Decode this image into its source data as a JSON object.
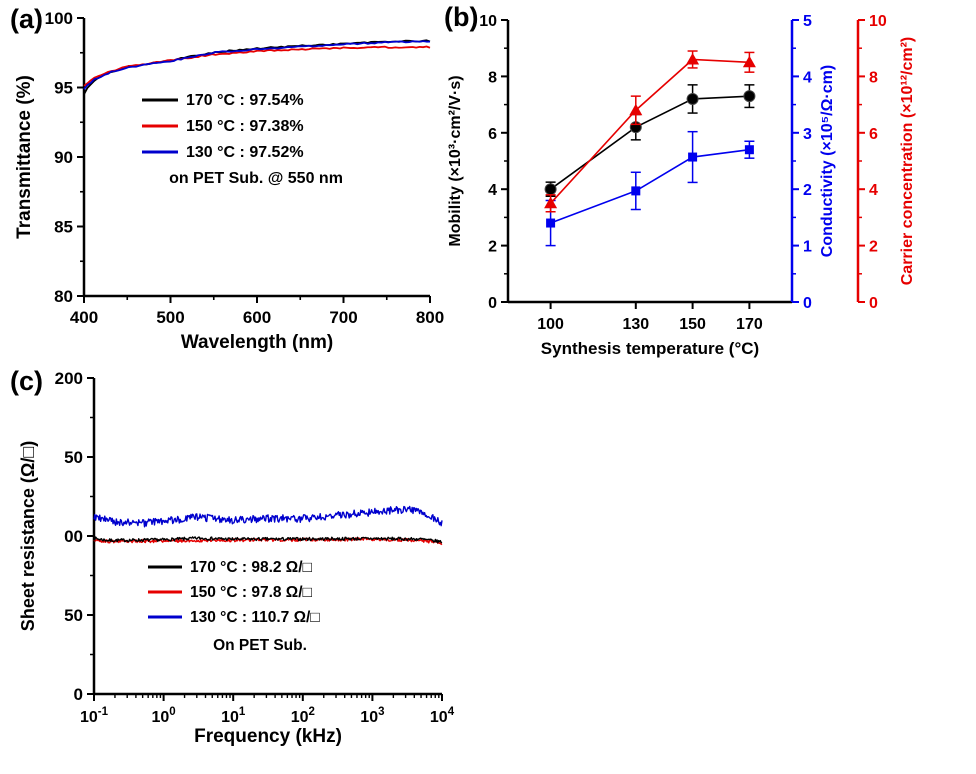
{
  "figure": {
    "background": "#ffffff"
  },
  "panels": {
    "a": {
      "label": "(a)"
    },
    "b": {
      "label": "(b)"
    },
    "c": {
      "label": "(c)"
    }
  },
  "chart_data": [
    {
      "id": "transmittance-vs-wavelength",
      "type": "line",
      "panel": "a",
      "xlabel": "Wavelength (nm)",
      "ylabel": "Transmittance (%)",
      "xlim": [
        400,
        800
      ],
      "ylim": [
        80,
        100
      ],
      "xticks": [
        400,
        500,
        600,
        700,
        800
      ],
      "xminor": [
        450,
        550,
        650,
        750
      ],
      "yticks": [
        80,
        85,
        90,
        95,
        100
      ],
      "yminor": [
        82.5,
        87.5,
        92.5,
        97.5
      ],
      "legend": [
        {
          "label": "170 °C : 97.54%",
          "color": "#000000"
        },
        {
          "label": "150 °C : 97.38%",
          "color": "#e60000"
        },
        {
          "label": "130 °C : 97.52%",
          "color": "#0000cd"
        }
      ],
      "note": "on PET Sub. @ 550 nm",
      "series": [
        {
          "name": "170 °C",
          "color": "#000000",
          "noise": 0.05,
          "seed": 101,
          "anchors": [
            [
              400,
              94.55
            ],
            [
              405,
              95.05
            ],
            [
              415,
              95.65
            ],
            [
              430,
              96.1
            ],
            [
              450,
              96.5
            ],
            [
              500,
              96.95
            ],
            [
              550,
              97.54
            ],
            [
              600,
              97.8
            ],
            [
              650,
              98.0
            ],
            [
              700,
              98.15
            ],
            [
              750,
              98.3
            ],
            [
              800,
              98.35
            ]
          ]
        },
        {
          "name": "150 °C",
          "color": "#e60000",
          "noise": 0.05,
          "seed": 102,
          "anchors": [
            [
              400,
              95.1
            ],
            [
              410,
              95.6
            ],
            [
              430,
              96.15
            ],
            [
              450,
              96.5
            ],
            [
              500,
              96.95
            ],
            [
              550,
              97.38
            ],
            [
              600,
              97.6
            ],
            [
              650,
              97.75
            ],
            [
              700,
              97.85
            ],
            [
              750,
              97.9
            ],
            [
              800,
              97.9
            ]
          ]
        },
        {
          "name": "130 °C",
          "color": "#0000cd",
          "noise": 0.05,
          "seed": 103,
          "anchors": [
            [
              400,
              94.9
            ],
            [
              410,
              95.5
            ],
            [
              430,
              96.1
            ],
            [
              450,
              96.45
            ],
            [
              500,
              96.9
            ],
            [
              550,
              97.52
            ],
            [
              600,
              97.75
            ],
            [
              650,
              97.95
            ],
            [
              700,
              98.1
            ],
            [
              750,
              98.25
            ],
            [
              800,
              98.3
            ]
          ]
        }
      ]
    },
    {
      "id": "electrical-properties-vs-temperature",
      "type": "scatter",
      "panel": "b",
      "xlabel": "Synthesis temperature (°C)",
      "xlim": [
        85,
        185
      ],
      "xticks": [
        100,
        130,
        150,
        170
      ],
      "axes": {
        "left": {
          "label": "Mobility (×10³·cm²/V·s)",
          "color": "#000000",
          "lim": [
            0,
            10
          ],
          "ticks": [
            0,
            2,
            4,
            6,
            8,
            10
          ],
          "minor": [
            1,
            3,
            5,
            7,
            9
          ]
        },
        "right_inner": {
          "label": "Conductivity (×10⁵/Ω·cm)",
          "color": "#0000ee",
          "lim": [
            0,
            5
          ],
          "ticks": [
            0,
            1,
            2,
            3,
            4,
            5
          ],
          "minor": [
            0.5,
            1.5,
            2.5,
            3.5,
            4.5
          ]
        },
        "right_outer": {
          "label": "Carrier concentration (×10¹²/cm²)",
          "color": "#e60000",
          "lim": [
            0,
            10
          ],
          "ticks": [
            0,
            2,
            4,
            6,
            8,
            10
          ],
          "minor": [
            1,
            3,
            5,
            7,
            9
          ]
        }
      },
      "categories": [
        100,
        130,
        150,
        170
      ],
      "series": [
        {
          "name": "Mobility",
          "axis": "left",
          "marker": "circle",
          "color": "#000000",
          "values": [
            4.0,
            6.2,
            7.2,
            7.3
          ],
          "errors": [
            0.25,
            0.45,
            0.5,
            0.4
          ]
        },
        {
          "name": "Conductivity",
          "axis": "right_inner",
          "marker": "square",
          "color": "#0000ee",
          "values": [
            1.4,
            1.97,
            2.57,
            2.7
          ],
          "errors": [
            0.4,
            0.33,
            0.45,
            0.15
          ]
        },
        {
          "name": "Carrier concentration",
          "axis": "right_outer",
          "marker": "triangle",
          "color": "#e60000",
          "values": [
            3.5,
            6.8,
            8.6,
            8.5
          ],
          "errors": [
            0.3,
            0.5,
            0.3,
            0.35
          ]
        }
      ]
    },
    {
      "id": "sheet-resistance-vs-frequency",
      "type": "line-logx",
      "panel": "c",
      "xlabel": "Frequency (kHz)",
      "ylabel": "Sheet resistance (Ω/□)",
      "xlim_log": [
        -1,
        4
      ],
      "ylim": [
        0,
        200
      ],
      "yticks": [
        {
          "value": 0,
          "label": "0"
        },
        {
          "value": 50,
          "label": "50"
        },
        {
          "value": 100,
          "label": "00"
        },
        {
          "value": 150,
          "label": "50"
        },
        {
          "value": 200,
          "label": "200"
        }
      ],
      "yminor": [
        25,
        75,
        125,
        175
      ],
      "xticks": [
        {
          "log": -1,
          "base": "10",
          "sup": "-1"
        },
        {
          "log": 0,
          "base": "10",
          "sup": "0"
        },
        {
          "log": 1,
          "base": "10",
          "sup": "1"
        },
        {
          "log": 2,
          "base": "10",
          "sup": "2"
        },
        {
          "log": 3,
          "base": "10",
          "sup": "3"
        },
        {
          "log": 4,
          "base": "10",
          "sup": "4"
        }
      ],
      "legend": [
        {
          "label": "170 °C : 98.2 Ω/□",
          "color": "#000000"
        },
        {
          "label": "150 °C : 97.8 Ω/□",
          "color": "#e60000"
        },
        {
          "label": "130 °C : 110.7 Ω/□",
          "color": "#0000cd"
        }
      ],
      "note": "On PET Sub.",
      "series": [
        {
          "name": "170 °C",
          "color": "#000000",
          "noise": 1.0,
          "seed": 7,
          "anchors": [
            [
              -1,
              98.5
            ],
            [
              -0.8,
              97.2
            ],
            [
              0,
              97.6
            ],
            [
              0.5,
              98.6
            ],
            [
              1,
              98.0
            ],
            [
              2,
              98.1
            ],
            [
              3,
              98.4
            ],
            [
              3.7,
              98.0
            ],
            [
              4,
              96.3
            ]
          ]
        },
        {
          "name": "150 °C",
          "color": "#e60000",
          "noise": 1.0,
          "seed": 8,
          "anchors": [
            [
              -1,
              97.4
            ],
            [
              -0.8,
              96.6
            ],
            [
              0,
              96.9
            ],
            [
              1,
              97.4
            ],
            [
              2,
              97.6
            ],
            [
              3,
              97.9
            ],
            [
              3.7,
              97.2
            ],
            [
              4,
              95.6
            ]
          ]
        },
        {
          "name": "130 °C",
          "color": "#0000cd",
          "noise": 2.4,
          "seed": 9,
          "anchors": [
            [
              -1,
              112
            ],
            [
              -0.7,
              109
            ],
            [
              -0.3,
              108
            ],
            [
              0,
              109.5
            ],
            [
              0.5,
              112
            ],
            [
              1,
              110
            ],
            [
              1.5,
              111
            ],
            [
              2,
              111
            ],
            [
              2.5,
              113
            ],
            [
              3,
              115
            ],
            [
              3.5,
              117
            ],
            [
              3.8,
              113
            ],
            [
              4,
              108
            ]
          ]
        }
      ]
    }
  ]
}
